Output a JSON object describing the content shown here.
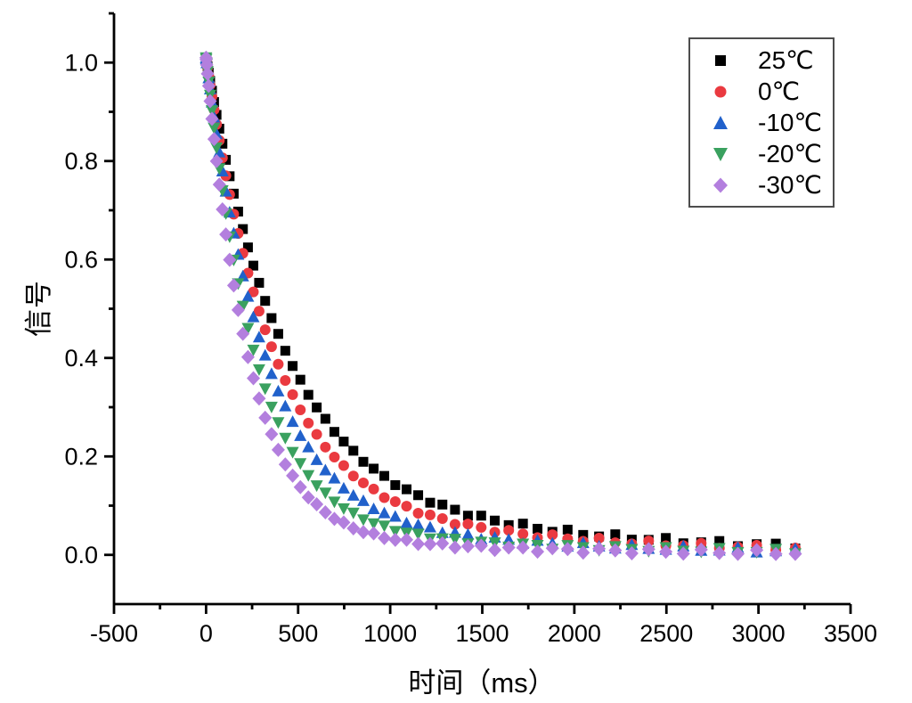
{
  "chart_data": {
    "type": "scatter",
    "title": "",
    "xlabel": "时间（ms）",
    "ylabel": "信号",
    "xlim": [
      -500,
      3500
    ],
    "ylim": [
      -0.1,
      1.1
    ],
    "grid": false,
    "legend_position": "top-right",
    "x_ticks": [
      {
        "v": -500,
        "label": "-500"
      },
      {
        "v": 0,
        "label": "0"
      },
      {
        "v": 500,
        "label": "500"
      },
      {
        "v": 1000,
        "label": "1000"
      },
      {
        "v": 1500,
        "label": "1500"
      },
      {
        "v": 2000,
        "label": "2000"
      },
      {
        "v": 2500,
        "label": "2500"
      },
      {
        "v": 3000,
        "label": "3000"
      },
      {
        "v": 3500,
        "label": "3500"
      }
    ],
    "x_minor_ticks": [
      -250,
      250,
      750,
      1250,
      1750,
      2250,
      2750,
      3250
    ],
    "y_ticks": [
      {
        "v": 0.0,
        "label": "0.0"
      },
      {
        "v": 0.2,
        "label": "0.2"
      },
      {
        "v": 0.4,
        "label": "0.4"
      },
      {
        "v": 0.6,
        "label": "0.6"
      },
      {
        "v": 0.8,
        "label": "0.8"
      },
      {
        "v": 1.0,
        "label": "1.0"
      }
    ],
    "y_minor_ticks": [
      0.1,
      0.3,
      0.5,
      0.7,
      0.9,
      1.1
    ],
    "sampling": {
      "t_start": 0,
      "t_end": 3200,
      "n_points": 61,
      "spacing": "quadratic"
    },
    "noise_amplitude": 0.005,
    "series": [
      {
        "name": "25℃",
        "marker": "square",
        "color": "#000000",
        "model": {
          "a1": 0.88,
          "tau1": 420,
          "a2": 0.13,
          "tau2": 1600
        },
        "reference_points": {
          "t": [
            0,
            500,
            1000,
            2000,
            3200
          ],
          "y": [
            1.01,
            0.36,
            0.15,
            0.045,
            0.018
          ]
        }
      },
      {
        "name": "0℃",
        "marker": "circle",
        "color": "#ea3a40",
        "model": {
          "a1": 0.9,
          "tau1": 360,
          "a2": 0.11,
          "tau2": 1500
        },
        "reference_points": {
          "t": [
            0,
            500,
            1000,
            2000,
            3200
          ],
          "y": [
            1.01,
            0.3,
            0.11,
            0.032,
            0.013
          ]
        }
      },
      {
        "name": "-10℃",
        "marker": "triangle-up",
        "color": "#2161cb",
        "model": {
          "a1": 0.93,
          "tau1": 320,
          "a2": 0.08,
          "tau2": 1400
        },
        "reference_points": {
          "t": [
            0,
            500,
            1000,
            2000,
            3200
          ],
          "y": [
            1.01,
            0.25,
            0.08,
            0.021,
            0.008
          ]
        }
      },
      {
        "name": "-20℃",
        "marker": "triangle-down",
        "color": "#3aa15f",
        "model": {
          "a1": 0.95,
          "tau1": 270,
          "a2": 0.06,
          "tau2": 1400
        },
        "reference_points": {
          "t": [
            0,
            500,
            1000,
            2000,
            3200
          ],
          "y": [
            1.01,
            0.19,
            0.053,
            0.015,
            0.006
          ]
        }
      },
      {
        "name": "-30℃",
        "marker": "diamond",
        "color": "#b37fde",
        "model": {
          "a1": 0.97,
          "tau1": 235,
          "a2": 0.04,
          "tau2": 1400
        },
        "reference_points": {
          "t": [
            0,
            500,
            1000,
            2000,
            3200
          ],
          "y": [
            1.01,
            0.14,
            0.033,
            0.01,
            0.004
          ]
        }
      }
    ]
  }
}
